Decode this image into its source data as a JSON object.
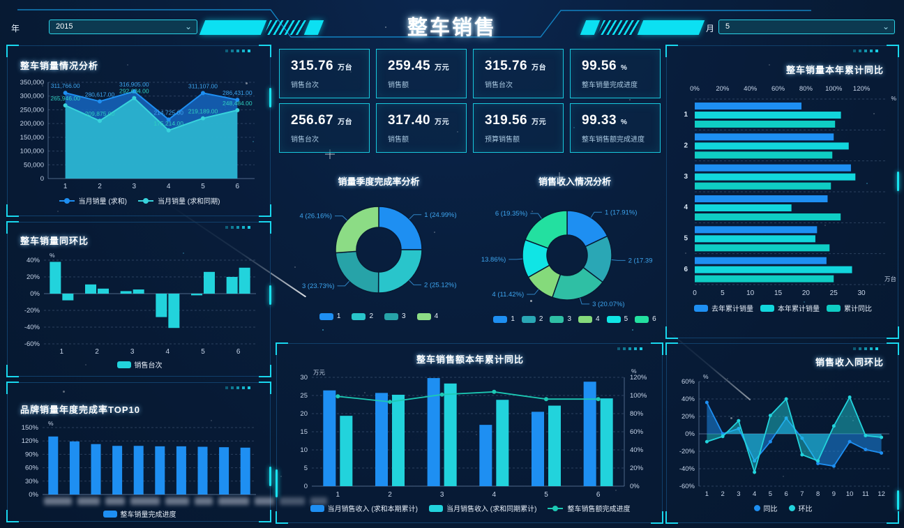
{
  "header": {
    "title": "整车销售",
    "year_label": "年",
    "year_value": "2015",
    "month_label": "月",
    "month_value": "5"
  },
  "icons": {
    "chevron_down": "⌄"
  },
  "theme": {
    "background": "#071a33",
    "accent_cyan": "#19e3f0",
    "series_blue": "#1e8ff2",
    "series_cyan": "#22d3dc",
    "series_teal": "#1cc9b4",
    "axis_text": "#c8d6ea",
    "label_blue": "#3ea6f0",
    "label_teal": "#2fd0c0"
  },
  "kpi_cards": [
    {
      "value": "315.76",
      "unit": "万台",
      "label": "销售台次"
    },
    {
      "value": "259.45",
      "unit": "万元",
      "label": "销售额"
    },
    {
      "value": "315.76",
      "unit": "万台",
      "label": "销售台次"
    },
    {
      "value": "99.56",
      "unit": "%",
      "label": "整车销量完成进度"
    },
    {
      "value": "256.67",
      "unit": "万台",
      "label": "销售台次"
    },
    {
      "value": "317.40",
      "unit": "万元",
      "label": "销售额"
    },
    {
      "value": "319.56",
      "unit": "万元",
      "label": "预算销售额"
    },
    {
      "value": "99.33",
      "unit": "%",
      "label": "整车销售额完成进度"
    }
  ],
  "chart_data": [
    {
      "id": "volume-trend",
      "type": "area",
      "title": "整车销量情况分析",
      "x": [
        1,
        2,
        3,
        4,
        5,
        6
      ],
      "ylim": [
        0,
        350000
      ],
      "ytick_step": 50000,
      "grid": true,
      "legend_position": "bottom",
      "series": [
        {
          "name": "当月销量 (求和)",
          "color": "#1e8ff2",
          "fill": "#1565c0",
          "fill_opacity": 0.85,
          "label_color": "#3ea6f0",
          "values": [
            311766,
            280617,
            316905,
            214725,
            311107,
            286431
          ],
          "labels": [
            "311,766.00",
            "280,617.00",
            "316,905.00",
            "214,725.00",
            "311,107.00",
            "286,431.00"
          ]
        },
        {
          "name": "当月销量 (求和同期)",
          "color": "#38d3dc",
          "fill": "#2fc3d4",
          "fill_opacity": 0.8,
          "label_color": "#2fd0c0",
          "values": [
            265946,
            209875,
            292634,
            175214,
            219189,
            248484
          ],
          "labels": [
            "265,946.00",
            "209,875.00",
            "292,634.00",
            "175,214.00",
            "219,189.00",
            "248,484.00"
          ]
        }
      ]
    },
    {
      "id": "volume-mom-yoy",
      "type": "bar",
      "title": "整车销量同环比",
      "categories": [
        1,
        2,
        3,
        4,
        5,
        6
      ],
      "unit": "%",
      "ylim": [
        -60,
        40
      ],
      "ytick_step": 20,
      "grid": true,
      "legend": [
        "销售台次"
      ],
      "series": [
        {
          "name": "销售台次",
          "color": "#22d3dc",
          "values": [
            38,
            11,
            3,
            -28,
            -2,
            20
          ]
        },
        {
          "name": "销售台次",
          "color": "#22d3dc",
          "values": [
            -8,
            6,
            5,
            -41,
            26,
            31
          ]
        }
      ]
    },
    {
      "id": "brand-top10",
      "type": "bar",
      "title": "品牌销量年度完成率TOP10",
      "unit": "%",
      "ylim": [
        0,
        150
      ],
      "ytick_step": 30,
      "grid": true,
      "x_labels_redacted": true,
      "redacted_count": 10,
      "series": [
        {
          "name": "整车销量完成进度",
          "color": "#1e8ff2",
          "values": [
            130,
            119,
            113,
            109,
            109,
            108,
            108,
            107,
            106,
            105
          ]
        }
      ]
    },
    {
      "id": "quarter-completion",
      "type": "pie",
      "title": "销量季度完成率分析",
      "donut": true,
      "slices": [
        {
          "name": "1",
          "value": 24.99,
          "label": "1 (24.99%)",
          "color": "#1e8ff2"
        },
        {
          "name": "2",
          "value": 25.12,
          "label": "2 (25.12%)",
          "color": "#29c5cb"
        },
        {
          "name": "3",
          "value": 23.73,
          "label": "3 (23.73%)",
          "color": "#27a3a8"
        },
        {
          "name": "4",
          "value": 26.16,
          "label": "4 (26.16%)",
          "color": "#8cdc85"
        }
      ]
    },
    {
      "id": "revenue-share",
      "type": "pie",
      "title": "销售收入情况分析",
      "donut": true,
      "slices": [
        {
          "name": "1",
          "value": 17.91,
          "label": "1 (17.91%)",
          "color": "#1e8ff2"
        },
        {
          "name": "2",
          "value": 17.39,
          "label": "2 (17.39",
          "color": "#2aa7b5"
        },
        {
          "name": "3",
          "value": 20.07,
          "label": "3 (20.07%)",
          "color": "#2fbfa4"
        },
        {
          "name": "4",
          "value": 11.42,
          "label": "4 (11.42%)",
          "color": "#85da7b"
        },
        {
          "name": "5",
          "value": 13.86,
          "label": "13.86%)",
          "color": "#10e5e5"
        },
        {
          "name": "6",
          "value": 19.35,
          "label": "6 (19.35%)",
          "color": "#23e0a0"
        }
      ]
    },
    {
      "id": "amount-cum-yoy",
      "type": "bar",
      "title": "整车销售额本年累计同比",
      "categories": [
        1,
        2,
        3,
        4,
        5,
        6
      ],
      "left_unit": "万元",
      "left_ylim": [
        0,
        30
      ],
      "left_step": 5,
      "right_unit": "%",
      "right_ylim": [
        0,
        120
      ],
      "right_step": 20,
      "grid": true,
      "series": [
        {
          "name": "当月销售收入 (求和本期累计)",
          "color": "#1e8ff2",
          "values": [
            26.4,
            25.7,
            29.8,
            16.9,
            20.5,
            28.8
          ]
        },
        {
          "name": "当月销售收入 (求和同期累计)",
          "color": "#22d3dc",
          "values": [
            19.4,
            25.2,
            28.3,
            23.8,
            22.2,
            24.2
          ]
        }
      ],
      "line": {
        "name": "整车销售额完成进度",
        "color": "#1cc9b4",
        "values": [
          99,
          93,
          101,
          104,
          96,
          96
        ]
      }
    },
    {
      "id": "volume-cum-yoy",
      "type": "bar",
      "orientation": "horizontal",
      "title": "整车销量本年累计同比",
      "categories": [
        1,
        2,
        3,
        4,
        5,
        6
      ],
      "top_axis": {
        "unit": "%",
        "ticks": [
          0,
          20,
          40,
          60,
          80,
          100,
          120
        ],
        "max": 130
      },
      "bottom_axis": {
        "unit": "万台",
        "ticks": [
          0,
          5,
          10,
          15,
          20,
          25,
          30
        ],
        "max": 32.5
      },
      "series": [
        {
          "name": "去年累计销量",
          "color": "#1e8ff2",
          "axis": "bottom",
          "values": [
            19.2,
            25.0,
            28.1,
            23.9,
            22.0,
            23.7
          ]
        },
        {
          "name": "本年累计销量",
          "color": "#12d6dc",
          "axis": "bottom",
          "values": [
            26.3,
            27.7,
            28.9,
            17.4,
            21.7,
            28.3
          ]
        },
        {
          "name": "累计同比",
          "color": "#0fcdc4",
          "axis": "top",
          "values": [
            101,
            99,
            98,
            105,
            97,
            100
          ]
        }
      ]
    },
    {
      "id": "revenue-mom-yoy",
      "type": "line",
      "title": "销售收入同环比",
      "x": [
        1,
        2,
        3,
        4,
        5,
        6,
        7,
        8,
        9,
        10,
        11,
        12
      ],
      "unit": "%",
      "ylim": [
        -60,
        60
      ],
      "ytick_step": 20,
      "grid": true,
      "series": [
        {
          "name": "同比",
          "color": "#1e8ff2",
          "fill_opacity": 0.5,
          "values": [
            36,
            0,
            6,
            -31,
            -9,
            18,
            -5,
            -34,
            -37,
            -9,
            -18,
            -22
          ]
        },
        {
          "name": "环比",
          "color": "#22d3dc",
          "fill_opacity": 0.45,
          "values": [
            -9,
            -3,
            15,
            -44,
            21,
            40,
            -24,
            -31,
            9,
            42,
            -2,
            -4
          ]
        }
      ]
    }
  ]
}
